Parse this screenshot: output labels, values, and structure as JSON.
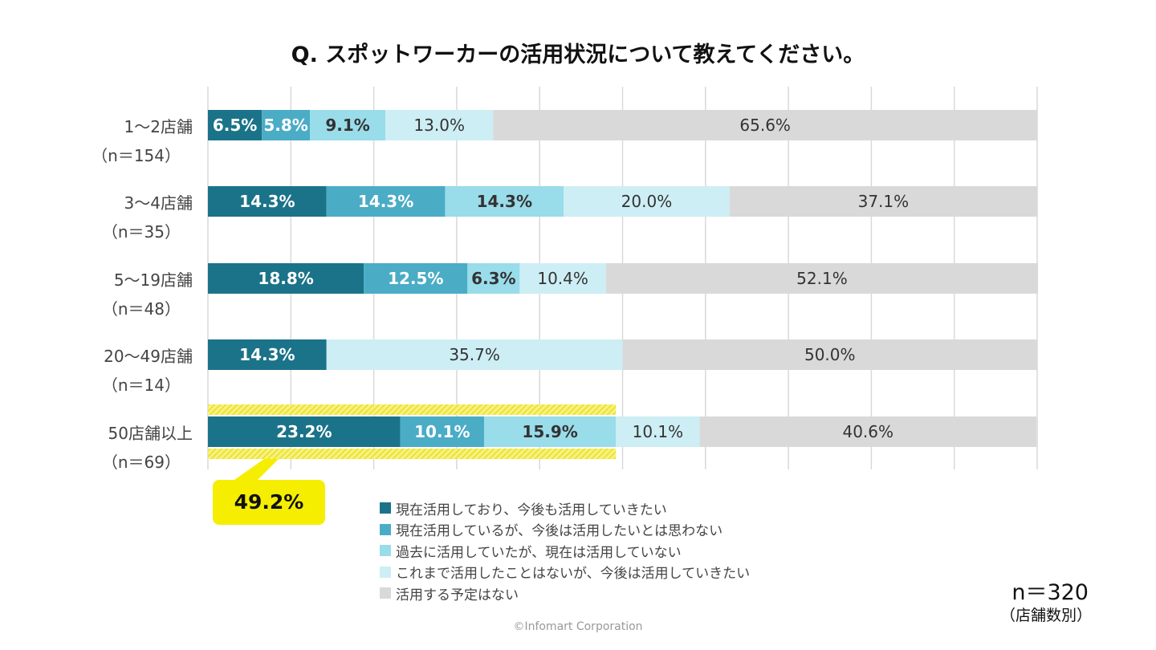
{
  "chart_data": {
    "type": "bar",
    "orientation": "horizontal",
    "stacked": true,
    "title": "Q. スポットワーカーの活用状況について教えてください。",
    "categories": [
      "1〜2店舗",
      "3〜4店舗",
      "5〜19店舗",
      "20〜49店舗",
      "50店舗以上"
    ],
    "category_n": [
      "（n＝154）",
      "（n＝35）",
      "（n＝48）",
      "（n＝14）",
      "（n＝69）"
    ],
    "xlim": [
      0,
      100
    ],
    "grid": true,
    "legend_position": "bottom",
    "series": [
      {
        "name": "現在活用しており、今後も活用していきたい",
        "color": "#1b7389",
        "values": [
          6.5,
          14.3,
          18.8,
          14.3,
          23.2
        ]
      },
      {
        "name": "現在活用しているが、今後は活用したいとは思わない",
        "color": "#4bacc6",
        "values": [
          5.8,
          14.3,
          12.5,
          0,
          10.1
        ]
      },
      {
        "name": "過去に活用していたが、現在は活用していない",
        "color": "#99dcea",
        "values": [
          9.1,
          14.3,
          6.3,
          0,
          15.9
        ]
      },
      {
        "name": "これまで活用したことはないが、今後は活用していきたい",
        "color": "#cdeef4",
        "values": [
          13.0,
          20.0,
          10.4,
          35.7,
          10.1
        ]
      },
      {
        "name": "活用する予定はない",
        "color": "#d9d9d9",
        "values": [
          65.6,
          37.1,
          52.1,
          50.0,
          40.6
        ]
      }
    ],
    "annotation": {
      "category": "50店舗以上",
      "text": "49.2%",
      "highlight_until": 49.2,
      "color": "#f5ee00"
    }
  },
  "footer": {
    "n_total": "n＝320",
    "n_note": "（店舗数別）",
    "copyright": "©Infomart Corporation"
  }
}
